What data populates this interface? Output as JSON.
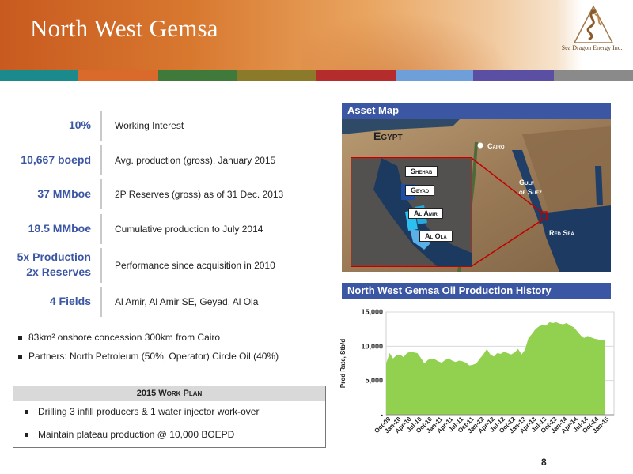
{
  "header": {
    "title": "North West Gemsa",
    "logo_text": "Sea Dragon Energy Inc."
  },
  "color_bars": [
    "#1a8a8c",
    "#d96a2b",
    "#3f7a3a",
    "#8a7a2a",
    "#b52c2c",
    "#6f9fd8",
    "#5b4fa3",
    "#8a8a8a"
  ],
  "kpis": [
    {
      "value": "10%",
      "desc": "Working Interest"
    },
    {
      "value": "10,667 boepd",
      "desc": "Avg. production (gross),  January 2015"
    },
    {
      "value": "37 MMboe",
      "desc": "2P Reserves (gross) as of 31 Dec. 2013"
    },
    {
      "value": "18.5 MMboe",
      "desc": "Cumulative production to July 2014"
    },
    {
      "value_line1": "5x Production",
      "value_line2": "2x Reserves",
      "desc": "Performance since acquisition in 2010"
    },
    {
      "value": "4 Fields",
      "desc": "Al Amir, Al Amir SE, Geyad, Al Ola"
    }
  ],
  "bullets": [
    "83km² onshore concession 300km from Cairo",
    "Partners: North Petroleum (50%, Operator) Circle Oil (40%)"
  ],
  "workplan": {
    "title": "2015 Work Plan",
    "items": [
      "Drilling 3 infill producers & 1 water injector work-over",
      "Maintain plateau production @ 10,000 BOEPD"
    ]
  },
  "asset_map": {
    "title": "Asset Map",
    "country": "Egypt",
    "city": "Cairo",
    "gulf": [
      "Gulf",
      "of Suez"
    ],
    "sea": "Red Sea",
    "fields": [
      "Shehab",
      "Geyad",
      "Al Amir",
      "Al Ola"
    ]
  },
  "chart_data": {
    "type": "area",
    "title": "North West Gemsa Oil Production History",
    "ylabel": "Prod Rate, Stb/d",
    "xlabel": "",
    "ylim": [
      0,
      15000
    ],
    "yticks": [
      0,
      5000,
      10000,
      15000
    ],
    "ytick_labels": [
      "-",
      "5,000",
      "10,000",
      "15,000"
    ],
    "xticks": [
      "Oct-09",
      "Jan-10",
      "Apr-10",
      "Jul-10",
      "Oct-10",
      "Jan-11",
      "Apr-11",
      "Jul-11",
      "Oct-11",
      "Jan-12",
      "Apr-12",
      "Jul-12",
      "Oct-12",
      "Jan-13",
      "Apr-13",
      "Jul-13",
      "Oct-13",
      "Jan-14",
      "Apr-14",
      "Jul-14",
      "Oct-14",
      "Jan-15"
    ],
    "grid": true,
    "color": "#92d050",
    "series": [
      {
        "x": [
          "Oct-09",
          "Nov-09",
          "Dec-09",
          "Jan-10",
          "Feb-10",
          "Mar-10",
          "Apr-10",
          "May-10",
          "Jun-10",
          "Jul-10",
          "Aug-10",
          "Sep-10",
          "Oct-10",
          "Nov-10",
          "Dec-10",
          "Jan-11",
          "Feb-11",
          "Mar-11",
          "Apr-11",
          "May-11",
          "Jun-11",
          "Jul-11",
          "Aug-11",
          "Sep-11",
          "Oct-11",
          "Nov-11",
          "Dec-11",
          "Jan-12",
          "Feb-12",
          "Mar-12",
          "Apr-12",
          "May-12",
          "Jun-12",
          "Jul-12",
          "Aug-12",
          "Sep-12",
          "Oct-12",
          "Nov-12",
          "Dec-12",
          "Jan-13",
          "Feb-13",
          "Mar-13",
          "Apr-13",
          "May-13",
          "Jun-13",
          "Jul-13",
          "Aug-13",
          "Sep-13",
          "Oct-13",
          "Nov-13",
          "Dec-13",
          "Jan-14",
          "Feb-14",
          "Mar-14",
          "Apr-14",
          "May-14",
          "Jun-14",
          "Jul-14",
          "Aug-14",
          "Sep-14",
          "Oct-14",
          "Nov-14",
          "Dec-14",
          "Jan-15"
        ],
        "values": [
          7500,
          9000,
          8200,
          8700,
          8800,
          8400,
          9000,
          9200,
          9100,
          9000,
          8300,
          7500,
          8000,
          8200,
          8100,
          7800,
          7600,
          8000,
          8200,
          7900,
          7700,
          7900,
          7800,
          7600,
          7200,
          7300,
          7500,
          8200,
          8800,
          9600,
          8800,
          8500,
          9000,
          8900,
          9200,
          9000,
          8800,
          9100,
          9600,
          8800,
          9500,
          11200,
          11800,
          12500,
          12900,
          13100,
          13000,
          13500,
          13400,
          13500,
          13300,
          13200,
          13400,
          13000,
          12800,
          12200,
          11600,
          11200,
          11500,
          11300,
          11100,
          11000,
          10900,
          11000
        ]
      }
    ]
  },
  "page_number": "8"
}
